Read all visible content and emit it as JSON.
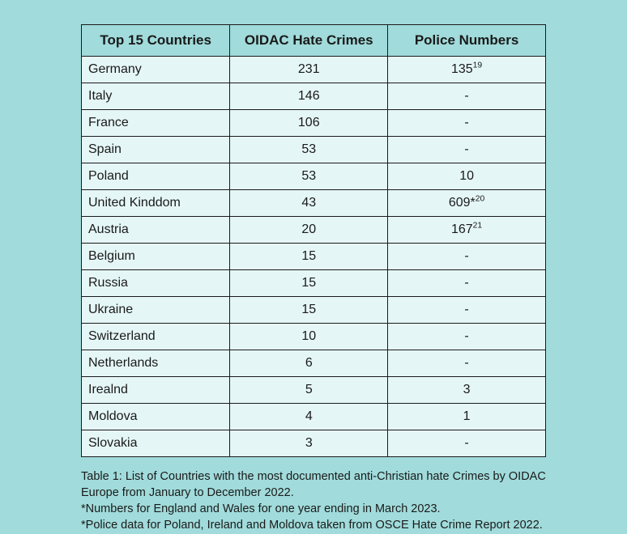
{
  "table": {
    "columns": [
      "Top 15 Countries",
      "OIDAC Hate Crimes",
      "Police Numbers"
    ],
    "header_bg": "#a1dbdb",
    "cell_bg": "#e5f6f6",
    "border_color": "#1a1a1a",
    "col_widths": [
      "32%",
      "34%",
      "34%"
    ],
    "rows": [
      {
        "country": "Germany",
        "hate": "231",
        "police": "135",
        "police_sup": "19"
      },
      {
        "country": "Italy",
        "hate": "146",
        "police": "-",
        "police_sup": ""
      },
      {
        "country": "France",
        "hate": "106",
        "police": "-",
        "police_sup": ""
      },
      {
        "country": "Spain",
        "hate": "53",
        "police": "-",
        "police_sup": ""
      },
      {
        "country": "Poland",
        "hate": "53",
        "police": "10",
        "police_sup": ""
      },
      {
        "country": "United Kinddom",
        "hate": "43",
        "police": "609*",
        "police_sup": "20"
      },
      {
        "country": "Austria",
        "hate": "20",
        "police": "167",
        "police_sup": "21"
      },
      {
        "country": "Belgium",
        "hate": "15",
        "police": "-",
        "police_sup": ""
      },
      {
        "country": "Russia",
        "hate": "15",
        "police": "-",
        "police_sup": ""
      },
      {
        "country": "Ukraine",
        "hate": "15",
        "police": "-",
        "police_sup": ""
      },
      {
        "country": "Switzerland",
        "hate": "10",
        "police": "-",
        "police_sup": ""
      },
      {
        "country": "Netherlands",
        "hate": "6",
        "police": "-",
        "police_sup": ""
      },
      {
        "country": "Irealnd",
        "hate": "5",
        "police": "3",
        "police_sup": ""
      },
      {
        "country": "Moldova",
        "hate": "4",
        "police": "1",
        "police_sup": ""
      },
      {
        "country": "Slovakia",
        "hate": "3",
        "police": "-",
        "police_sup": ""
      }
    ]
  },
  "caption": {
    "line1": " Table 1: List of Countries with the most documented anti-Christian hate Crimes by OIDAC Europe from January to December 2022.",
    "line2": "*Numbers for England and Wales for one year ending in March 2023.",
    "line3": "*Police data for Poland, Ireland and Moldova taken from OSCE Hate Crime Report 2022."
  },
  "background_color": "#a1dbdb"
}
